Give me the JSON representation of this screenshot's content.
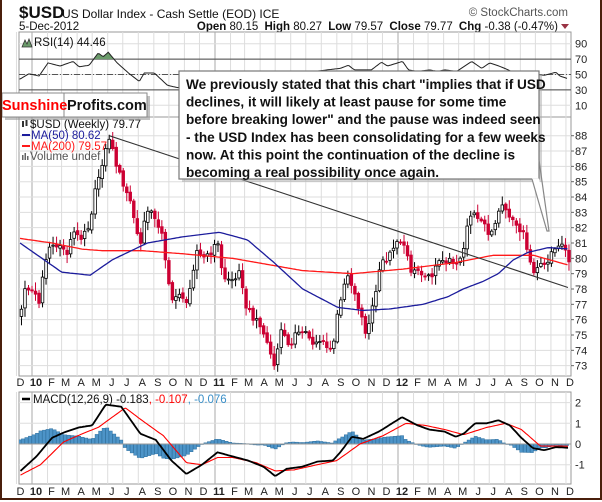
{
  "header": {
    "symbol": "$USD",
    "name": "US Dollar Index - Cash Settle (EOD) ICE",
    "copyright": "© StockCharts.com",
    "date": "5-Dec-2012",
    "open_label": "Open",
    "open": "80.15",
    "high_label": "High",
    "high": "80.27",
    "low_label": "Low",
    "low": "79.57",
    "close_label": "Close",
    "close": "79.77",
    "chg_label": "Chg",
    "chg": "-0.38 (-0.47%)",
    "chg_icon": "down-triangle-icon"
  },
  "logo": {
    "part1": "Sunshine",
    "part2": "Profits.com"
  },
  "annotation_box": {
    "lines": [
      "We previously stated that this chart \"implies that if USD",
      "declines, it will likely at least pause for some time",
      "before breaking lower\" and the pause was indeed seen",
      "- the USD Index has been consolidating for a few weeks",
      "now. At this point the continuation of the decline is",
      "becoming a real possibility once again."
    ]
  },
  "colors": {
    "down_candle": "#cc0033",
    "up_candle": "#ffffff",
    "ma50": "#1c1c9c",
    "ma200": "#ff1a1a",
    "rsi_fill": "#6b9b6b",
    "macd": "#000000",
    "signal": "#ff0000",
    "histogram": "#4d94c8",
    "trendline": "#333333"
  },
  "chart_data": [
    {
      "type": "line",
      "panel": "RSI",
      "legend": "RSI(14) 44.46",
      "ylim": [
        0,
        100
      ],
      "y_ticks": [
        "90",
        "70",
        "50",
        "30",
        "10"
      ],
      "levels": [
        70,
        50,
        30
      ],
      "points": [
        [
          "2009-12-08",
          44
        ],
        [
          "2009-12-26",
          51
        ],
        [
          "2010-01-15",
          48
        ],
        [
          "2010-02-02",
          65
        ],
        [
          "2010-02-26",
          61
        ],
        [
          "2010-03-24",
          67
        ],
        [
          "2010-04-05",
          60
        ],
        [
          "2010-04-25",
          62
        ],
        [
          "2010-05-13",
          78
        ],
        [
          "2010-05-23",
          73
        ],
        [
          "2010-06-02",
          79
        ],
        [
          "2010-06-20",
          65
        ],
        [
          "2010-07-14",
          51
        ],
        [
          "2010-08-03",
          41
        ],
        [
          "2010-08-13",
          52
        ],
        [
          "2010-09-02",
          52
        ],
        [
          "2010-09-28",
          36
        ],
        [
          "2010-10-18",
          33
        ],
        [
          "2011-09-08",
          58
        ],
        [
          "2011-09-24",
          62
        ],
        [
          "2011-10-06",
          56
        ],
        [
          "2011-11-09",
          56
        ],
        [
          "2011-11-29",
          66
        ],
        [
          "2011-12-11",
          61
        ],
        [
          "2012-01-10",
          67
        ],
        [
          "2012-01-22",
          56
        ],
        [
          "2012-02-09",
          54
        ],
        [
          "2012-03-04",
          56
        ],
        [
          "2012-03-20",
          54
        ],
        [
          "2012-04-03",
          56
        ],
        [
          "2012-04-27",
          54
        ],
        [
          "2012-05-27",
          67
        ],
        [
          "2012-06-16",
          58
        ],
        [
          "2012-07-02",
          65
        ],
        [
          "2012-07-16",
          62
        ],
        [
          "2012-08-01",
          58
        ],
        [
          "2012-08-17",
          53
        ],
        [
          "2012-10-19",
          49
        ],
        [
          "2012-11-11",
          53
        ],
        [
          "2012-11-19",
          48
        ],
        [
          "2012-12-05",
          44.46
        ]
      ]
    },
    {
      "type": "candlestick",
      "panel": "price",
      "legend": {
        "price": "$USD (Weekly) 79.77",
        "ma50": "MA(50) 80.62",
        "ma200": "MA(200) 79.57",
        "volume": "Volume undef"
      },
      "ylim": [
        72.6,
        89.2
      ],
      "y_ticks": [
        "88",
        "87",
        "86",
        "85",
        "84",
        "83",
        "82",
        "81",
        "80",
        "79",
        "78",
        "77",
        "76",
        "75",
        "74",
        "73"
      ],
      "weekly_close": [
        [
          "2009-12-08",
          76.2
        ],
        [
          "2009-12-16",
          77.9
        ],
        [
          "2010-01-07",
          77.9
        ],
        [
          "2010-01-15",
          76.9
        ],
        [
          "2010-01-25",
          79.4
        ],
        [
          "2010-02-04",
          80.7
        ],
        [
          "2010-02-20",
          81.0
        ],
        [
          "2010-03-12",
          80.3
        ],
        [
          "2010-03-26",
          81.8
        ],
        [
          "2010-04-11",
          81.3
        ],
        [
          "2010-04-27",
          82.0
        ],
        [
          "2010-05-11",
          85.3
        ],
        [
          "2010-05-21",
          86.0
        ],
        [
          "2010-06-04",
          87.9
        ],
        [
          "2010-06-16",
          86.4
        ],
        [
          "2010-06-26",
          85.3
        ],
        [
          "2010-07-14",
          84.0
        ],
        [
          "2010-07-26",
          82.3
        ],
        [
          "2010-08-05",
          80.7
        ],
        [
          "2010-08-15",
          83.1
        ],
        [
          "2010-09-04",
          82.7
        ],
        [
          "2010-09-18",
          81.4
        ],
        [
          "2010-09-28",
          78.6
        ],
        [
          "2010-10-08",
          77.5
        ],
        [
          "2010-10-22",
          77.5
        ],
        [
          "2010-11-03",
          77.1
        ],
        [
          "2010-11-17",
          78.6
        ],
        [
          "2010-11-27",
          80.5
        ],
        [
          "2010-12-07",
          80.1
        ],
        [
          "2010-12-27",
          80.5
        ],
        [
          "2011-01-10",
          81.2
        ],
        [
          "2011-01-16",
          78.6
        ],
        [
          "2011-02-05",
          78.6
        ],
        [
          "2011-02-19",
          79.0
        ],
        [
          "2011-03-01",
          77.1
        ],
        [
          "2011-03-21",
          76.0
        ],
        [
          "2011-04-06",
          75.3
        ],
        [
          "2011-04-20",
          74.0
        ],
        [
          "2011-04-30",
          72.9
        ],
        [
          "2011-05-10",
          75.3
        ],
        [
          "2011-05-22",
          75.0
        ],
        [
          "2011-06-01",
          74.0
        ],
        [
          "2011-06-11",
          75.0
        ],
        [
          "2011-06-21",
          75.5
        ],
        [
          "2011-07-05",
          75.1
        ],
        [
          "2011-07-15",
          74.3
        ],
        [
          "2011-08-04",
          74.6
        ],
        [
          "2011-08-24",
          74.0
        ],
        [
          "2011-09-03",
          76.8
        ],
        [
          "2011-09-23",
          78.8
        ],
        [
          "2011-10-07",
          77.5
        ],
        [
          "2011-10-17",
          76.5
        ],
        [
          "2011-10-29",
          75.0
        ],
        [
          "2011-11-12",
          77.0
        ],
        [
          "2011-11-26",
          79.5
        ],
        [
          "2011-12-16",
          80.2
        ],
        [
          "2012-01-05",
          81.3
        ],
        [
          "2012-01-17",
          80.5
        ],
        [
          "2012-01-25",
          79.0
        ],
        [
          "2012-02-06",
          79.3
        ],
        [
          "2012-02-26",
          78.5
        ],
        [
          "2012-03-31",
          80.0
        ],
        [
          "2012-04-26",
          79.5
        ],
        [
          "2012-05-10",
          80.3
        ],
        [
          "2012-05-20",
          82.5
        ],
        [
          "2012-05-30",
          83.2
        ],
        [
          "2012-06-15",
          82.5
        ],
        [
          "2012-06-29",
          81.6
        ],
        [
          "2012-07-09",
          82.0
        ],
        [
          "2012-07-19",
          83.3
        ],
        [
          "2012-07-29",
          83.5
        ],
        [
          "2012-08-08",
          82.8
        ],
        [
          "2012-08-22",
          82.5
        ],
        [
          "2012-09-07",
          81.5
        ],
        [
          "2012-09-17",
          80.5
        ],
        [
          "2012-09-27",
          79.0
        ],
        [
          "2012-10-13",
          79.8
        ],
        [
          "2012-10-27",
          79.8
        ],
        [
          "2012-11-06",
          80.5
        ],
        [
          "2012-11-22",
          81.2
        ],
        [
          "2012-11-30",
          80.3
        ],
        [
          "2012-12-05",
          79.77
        ]
      ],
      "ma50": [
        [
          "2009-12-08",
          81.0
        ],
        [
          "2010-01-21",
          80.0
        ],
        [
          "2010-03-01",
          79.1
        ],
        [
          "2010-04-27",
          78.9
        ],
        [
          "2010-06-10",
          79.9
        ],
        [
          "2010-08-19",
          81.0
        ],
        [
          "2010-10-28",
          81.4
        ],
        [
          "2011-01-10",
          81.7
        ],
        [
          "2011-03-07",
          81.2
        ],
        [
          "2011-04-26",
          79.8
        ],
        [
          "2011-06-25",
          78.0
        ],
        [
          "2011-09-03",
          76.8
        ],
        [
          "2011-10-23",
          76.6
        ],
        [
          "2011-12-16",
          76.7
        ],
        [
          "2012-02-20",
          77.0
        ],
        [
          "2012-04-10",
          77.5
        ],
        [
          "2012-05-10",
          78.0
        ],
        [
          "2012-06-19",
          78.5
        ],
        [
          "2012-07-19",
          79.0
        ],
        [
          "2012-08-18",
          79.9
        ],
        [
          "2012-09-17",
          80.4
        ],
        [
          "2012-10-27",
          80.7
        ],
        [
          "2012-12-05",
          80.62
        ]
      ],
      "ma200": [
        [
          "2009-12-08",
          81.3
        ],
        [
          "2010-02-10",
          81.0
        ],
        [
          "2010-04-11",
          80.6
        ],
        [
          "2010-05-21",
          80.5
        ],
        [
          "2010-08-09",
          80.5
        ],
        [
          "2010-10-28",
          80.3
        ],
        [
          "2011-02-05",
          80.0
        ],
        [
          "2011-06-25",
          79.2
        ],
        [
          "2011-10-03",
          79.0
        ],
        [
          "2012-01-11",
          79.3
        ],
        [
          "2012-04-20",
          79.7
        ],
        [
          "2012-07-09",
          80.2
        ],
        [
          "2012-09-27",
          80.2
        ],
        [
          "2012-12-05",
          79.57
        ]
      ],
      "trendline": [
        [
          "2010-06-04",
          88.0
        ],
        [
          "2012-12-05",
          78.1
        ]
      ]
    },
    {
      "type": "line",
      "panel": "MACD",
      "legend": {
        "label": "MACD(12,26,9)",
        "macd": "-0.183",
        "signal": ", -0.107",
        "histogram": ", -0.076"
      },
      "ylim": [
        -2,
        2.3
      ],
      "y_ticks": [
        "2",
        "1",
        "0",
        "-1"
      ],
      "macd": [
        [
          "2009-12-09",
          -1.3
        ],
        [
          "2010-01-10",
          -0.6
        ],
        [
          "2010-02-10",
          0.3
        ],
        [
          "2010-03-05",
          0.55
        ],
        [
          "2010-04-05",
          0.8
        ],
        [
          "2010-05-01",
          0.9
        ],
        [
          "2010-05-28",
          1.9
        ],
        [
          "2010-06-28",
          1.8
        ],
        [
          "2010-08-05",
          0.5
        ],
        [
          "2010-09-05",
          0.2
        ],
        [
          "2010-10-06",
          -0.8
        ],
        [
          "2010-11-05",
          -1.45
        ],
        [
          "2010-12-06",
          -1.0
        ],
        [
          "2011-01-06",
          -0.4
        ],
        [
          "2011-02-05",
          -0.6
        ],
        [
          "2011-03-08",
          -0.8
        ],
        [
          "2011-04-08",
          -1.1
        ],
        [
          "2011-05-01",
          -1.55
        ],
        [
          "2011-05-24",
          -1.2
        ],
        [
          "2011-06-24",
          -1.1
        ],
        [
          "2011-07-24",
          -0.85
        ],
        [
          "2011-08-24",
          -0.8
        ],
        [
          "2011-09-08",
          -0.4
        ],
        [
          "2011-10-01",
          0.35
        ],
        [
          "2011-10-24",
          0.25
        ],
        [
          "2011-11-24",
          0.6
        ],
        [
          "2012-01-09",
          1.3
        ],
        [
          "2012-02-09",
          0.9
        ],
        [
          "2012-03-03",
          0.7
        ],
        [
          "2012-04-03",
          0.6
        ],
        [
          "2012-04-25",
          0.35
        ],
        [
          "2012-05-11",
          0.5
        ],
        [
          "2012-06-03",
          1.0
        ],
        [
          "2012-06-26",
          1.0
        ],
        [
          "2012-07-19",
          1.15
        ],
        [
          "2012-08-11",
          0.9
        ],
        [
          "2012-09-03",
          0.3
        ],
        [
          "2012-09-26",
          -0.2
        ],
        [
          "2012-10-19",
          -0.3
        ],
        [
          "2012-11-11",
          -0.15
        ],
        [
          "2012-12-05",
          -0.183
        ]
      ],
      "signal": [
        [
          "2009-12-09",
          -1.5
        ],
        [
          "2010-01-18",
          -1.0
        ],
        [
          "2010-03-05",
          0.1
        ],
        [
          "2010-04-12",
          0.5
        ],
        [
          "2010-05-13",
          0.8
        ],
        [
          "2010-07-06",
          1.75
        ],
        [
          "2010-08-05",
          1.2
        ],
        [
          "2010-09-20",
          0.4
        ],
        [
          "2010-11-05",
          -0.9
        ],
        [
          "2010-12-06",
          -1.0
        ],
        [
          "2011-01-06",
          -0.65
        ],
        [
          "2011-02-05",
          -0.65
        ],
        [
          "2011-03-24",
          -0.9
        ],
        [
          "2011-05-01",
          -1.3
        ],
        [
          "2011-06-08",
          -1.25
        ],
        [
          "2011-07-24",
          -1.0
        ],
        [
          "2011-09-01",
          -0.8
        ],
        [
          "2011-10-17",
          0.0
        ],
        [
          "2011-12-02",
          0.4
        ],
        [
          "2012-01-17",
          1.0
        ],
        [
          "2012-02-24",
          0.9
        ],
        [
          "2012-04-03",
          0.7
        ],
        [
          "2012-05-11",
          0.45
        ],
        [
          "2012-06-26",
          0.8
        ],
        [
          "2012-08-03",
          1.0
        ],
        [
          "2012-09-03",
          0.7
        ],
        [
          "2012-10-11",
          -0.1
        ],
        [
          "2012-11-11",
          -0.1
        ],
        [
          "2012-12-05",
          -0.107
        ]
      ]
    }
  ],
  "x_ticks": [
    "D",
    "10",
    "F",
    "M",
    "A",
    "M",
    "J",
    "J",
    "A",
    "S",
    "O",
    "N",
    "D",
    "11",
    "F",
    "M",
    "A",
    "M",
    "J",
    "J",
    "A",
    "S",
    "O",
    "N",
    "D",
    "12",
    "F",
    "M",
    "A",
    "M",
    "J",
    "J",
    "A",
    "S",
    "O",
    "N",
    "D"
  ]
}
